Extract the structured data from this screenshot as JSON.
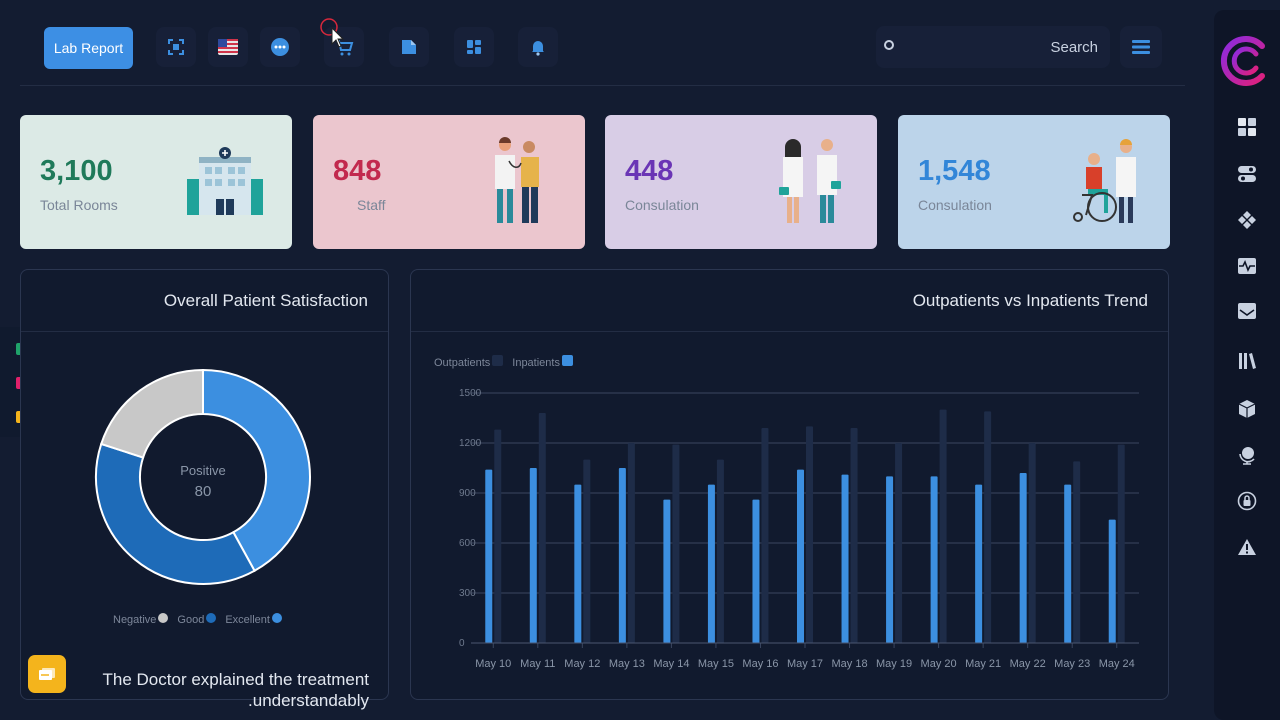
{
  "toolbar": {
    "lab_report_label": "Lab Report",
    "search_placeholder": "Search",
    "icons": [
      "fullscreen-icon",
      "flag-us-icon",
      "chat-icon",
      "cart-icon",
      "file-icon",
      "grid-icon",
      "notification-bell-icon",
      "menu-icon"
    ]
  },
  "cards": [
    {
      "value": "3,100",
      "label": "Total Rooms",
      "bg": "#dceae6",
      "color": "#1f7a5a"
    },
    {
      "value": "848",
      "label": "Staff",
      "bg": "#ebc6ce",
      "color": "#c2294e"
    },
    {
      "value": "448",
      "label": "Consulation",
      "bg": "#d8cde6",
      "color": "#6a35b5"
    },
    {
      "value": "1,548",
      "label": "Consulation",
      "bg": "#bcd4ea",
      "color": "#3286d8"
    }
  ],
  "satisfaction": {
    "title": "Overall Patient Satisfaction",
    "center_label": "Positive",
    "center_value": "80",
    "legend": [
      {
        "name": "Negative",
        "color": "#c8c8c8"
      },
      {
        "name": "Good",
        "color": "#1e6bb8"
      },
      {
        "name": "Excellent",
        "color": "#3c8fe0"
      }
    ]
  },
  "trend": {
    "title": "Outpatients vs Inpatients Trend",
    "legend": [
      {
        "name": "Outpatients",
        "color": "#1e2c48"
      },
      {
        "name": "Inpatients",
        "color": "#3c8fe0"
      }
    ]
  },
  "chart_data": [
    {
      "type": "pie",
      "categories": [
        "Excellent",
        "Good",
        "Negative"
      ],
      "values": [
        42,
        38,
        20
      ],
      "center_label": "Positive",
      "center_value": 80,
      "legend_position": "bottom"
    },
    {
      "type": "bar",
      "categories": [
        "May 10",
        "May 11",
        "May 12",
        "May 13",
        "May 14",
        "May 15",
        "May 16",
        "May 17",
        "May 18",
        "May 19",
        "May 20",
        "May 21",
        "May 22",
        "May 23",
        "May 24"
      ],
      "series": [
        {
          "name": "Outpatients",
          "values": [
            1280,
            1380,
            1100,
            1200,
            1190,
            1100,
            1290,
            1300,
            1290,
            1200,
            1400,
            1390,
            1200,
            1090,
            1190
          ]
        },
        {
          "name": "Inpatients",
          "values": [
            1040,
            1050,
            950,
            1050,
            860,
            950,
            860,
            1040,
            1010,
            1000,
            1000,
            950,
            1020,
            950,
            740
          ]
        }
      ],
      "ylim": [
        0,
        1500
      ],
      "yticks": [
        0,
        300,
        600,
        900,
        1200,
        1500
      ],
      "grid": true,
      "legend_position": "top-left"
    }
  ],
  "toast": {
    "text": "The Doctor explained the treatment .understandably"
  }
}
